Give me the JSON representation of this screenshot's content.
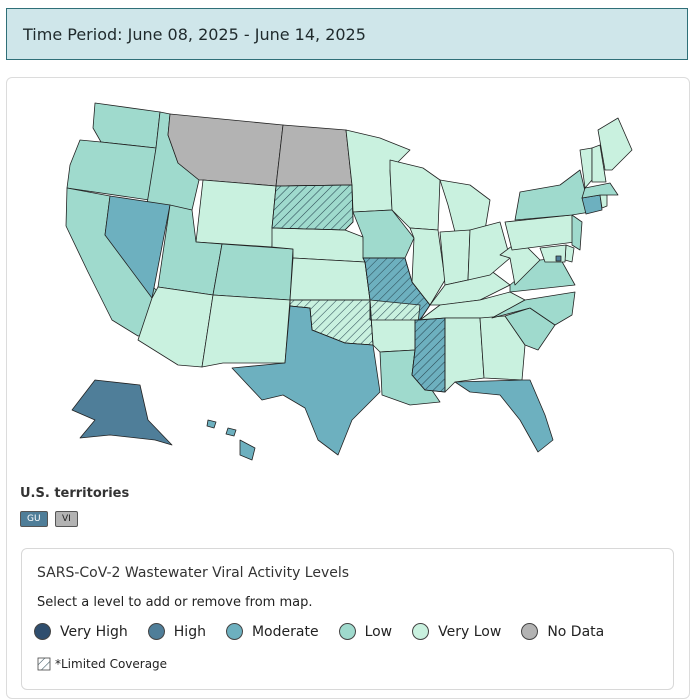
{
  "header": {
    "period": "Time Period: June 08, 2025 - June 14, 2025"
  },
  "map": {
    "levels": {
      "very_high": "#2f4e6e",
      "high": "#4f7e99",
      "moderate": "#6db0bf",
      "low": "#9fdacd",
      "very_low": "#c9f1df",
      "no_data": "#b3b3b3"
    },
    "states": [
      {
        "name": "WA",
        "level": "low"
      },
      {
        "name": "OR",
        "level": "low"
      },
      {
        "name": "CA",
        "level": "low"
      },
      {
        "name": "ID",
        "level": "low"
      },
      {
        "name": "NV",
        "level": "moderate"
      },
      {
        "name": "MT",
        "level": "no_data"
      },
      {
        "name": "WY",
        "level": "very_low"
      },
      {
        "name": "UT",
        "level": "low"
      },
      {
        "name": "AZ",
        "level": "very_low"
      },
      {
        "name": "CO",
        "level": "low"
      },
      {
        "name": "NM",
        "level": "very_low"
      },
      {
        "name": "ND",
        "level": "no_data"
      },
      {
        "name": "SD",
        "level": "low",
        "limited": true
      },
      {
        "name": "NE",
        "level": "very_low"
      },
      {
        "name": "KS",
        "level": "very_low"
      },
      {
        "name": "OK",
        "level": "very_low",
        "limited": true
      },
      {
        "name": "TX",
        "level": "moderate"
      },
      {
        "name": "MN",
        "level": "very_low"
      },
      {
        "name": "IA",
        "level": "low"
      },
      {
        "name": "MO",
        "level": "moderate",
        "limited": true
      },
      {
        "name": "AR",
        "level": "very_low"
      },
      {
        "name": "LA",
        "level": "low"
      },
      {
        "name": "WI",
        "level": "very_low"
      },
      {
        "name": "IL",
        "level": "very_low"
      },
      {
        "name": "MS",
        "level": "moderate",
        "limited": true
      },
      {
        "name": "MI",
        "level": "very_low"
      },
      {
        "name": "IN",
        "level": "very_low"
      },
      {
        "name": "KY",
        "level": "very_low"
      },
      {
        "name": "TN",
        "level": "very_low"
      },
      {
        "name": "AL",
        "level": "very_low"
      },
      {
        "name": "OH",
        "level": "very_low"
      },
      {
        "name": "GA",
        "level": "very_low"
      },
      {
        "name": "FL",
        "level": "moderate"
      },
      {
        "name": "SC",
        "level": "low"
      },
      {
        "name": "NC",
        "level": "low"
      },
      {
        "name": "VA",
        "level": "low"
      },
      {
        "name": "WV",
        "level": "very_low"
      },
      {
        "name": "PA",
        "level": "very_low"
      },
      {
        "name": "NY",
        "level": "low"
      },
      {
        "name": "NJ",
        "level": "low"
      },
      {
        "name": "DE",
        "level": "very_low"
      },
      {
        "name": "MD",
        "level": "very_low"
      },
      {
        "name": "DC",
        "level": "high"
      },
      {
        "name": "CT",
        "level": "moderate"
      },
      {
        "name": "RI",
        "level": "very_low"
      },
      {
        "name": "MA",
        "level": "low"
      },
      {
        "name": "VT",
        "level": "very_low"
      },
      {
        "name": "NH",
        "level": "very_low"
      },
      {
        "name": "ME",
        "level": "very_low"
      },
      {
        "name": "AK",
        "level": "high"
      },
      {
        "name": "HI",
        "level": "moderate"
      }
    ]
  },
  "territories": {
    "title": "U.S. territories",
    "items": [
      {
        "label": "GU",
        "level": "high"
      },
      {
        "label": "VI",
        "level": "no_data"
      }
    ]
  },
  "legend": {
    "title": "SARS-CoV-2 Wastewater Viral Activity Levels",
    "hint": "Select a level to add or remove from map.",
    "items": [
      {
        "label": "Very High",
        "level": "very_high"
      },
      {
        "label": "High",
        "level": "high"
      },
      {
        "label": "Moderate",
        "level": "moderate"
      },
      {
        "label": "Low",
        "level": "low"
      },
      {
        "label": "Very Low",
        "level": "very_low"
      },
      {
        "label": "No Data",
        "level": "no_data"
      }
    ],
    "limited": "*Limited Coverage"
  }
}
